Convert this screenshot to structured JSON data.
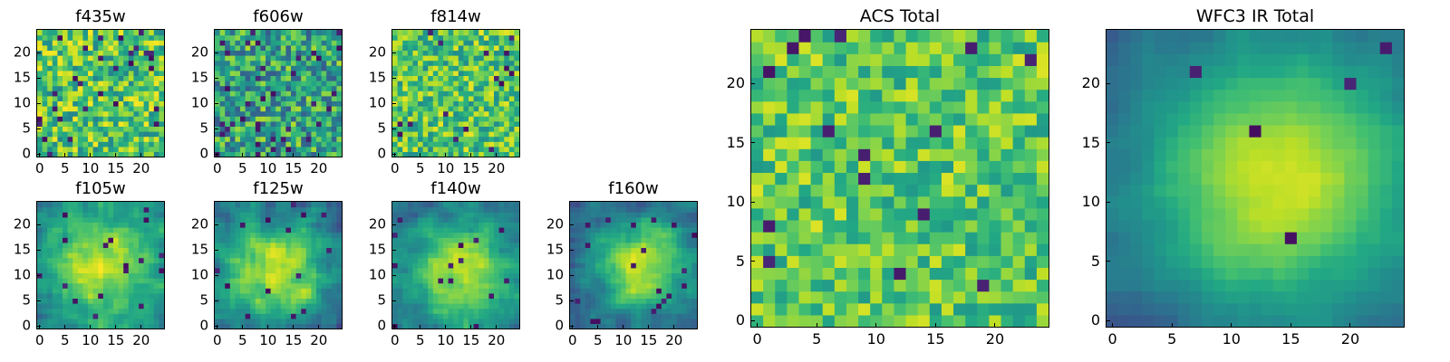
{
  "chart_data": [
    {
      "type": "heatmap",
      "title": "f435w",
      "size": "small",
      "grid_size": 25,
      "colormap": "viridis",
      "xlim": [
        0,
        24
      ],
      "ylim": [
        0,
        24
      ],
      "xticks": [
        0,
        5,
        10,
        15,
        20
      ],
      "yticks": [
        0,
        5,
        10,
        15,
        20
      ],
      "pattern": "noise",
      "noise_seed": 11,
      "noise_amplitude": 0.55,
      "base_level": 0.72,
      "dark_pixel_fraction": 0.05
    },
    {
      "type": "heatmap",
      "title": "f606w",
      "size": "small",
      "grid_size": 25,
      "colormap": "viridis",
      "xlim": [
        0,
        24
      ],
      "ylim": [
        0,
        24
      ],
      "xticks": [
        0,
        5,
        10,
        15,
        20
      ],
      "yticks": [
        0,
        5,
        10,
        15,
        20
      ],
      "pattern": "noise",
      "noise_seed": 23,
      "noise_amplitude": 0.6,
      "base_level": 0.58,
      "dark_pixel_fraction": 0.05
    },
    {
      "type": "heatmap",
      "title": "f814w",
      "size": "small",
      "grid_size": 25,
      "colormap": "viridis",
      "xlim": [
        0,
        24
      ],
      "ylim": [
        0,
        24
      ],
      "xticks": [
        0,
        5,
        10,
        15,
        20
      ],
      "yticks": [
        0,
        5,
        10,
        15,
        20
      ],
      "pattern": "noise",
      "noise_seed": 37,
      "noise_amplitude": 0.5,
      "base_level": 0.72,
      "dark_pixel_fraction": 0.03
    },
    {
      "type": "heatmap",
      "title": "f105w",
      "size": "small",
      "grid_size": 25,
      "colormap": "viridis",
      "xlim": [
        0,
        24
      ],
      "ylim": [
        0,
        24
      ],
      "xticks": [
        0,
        5,
        10,
        15,
        20
      ],
      "yticks": [
        0,
        5,
        10,
        15,
        20
      ],
      "pattern": "blob",
      "blob_center": [
        12,
        12
      ],
      "blob_sigma": 7.5,
      "blob_amplitude": 0.5,
      "base_level": 0.42,
      "noise_seed": 41,
      "noise_amplitude": 0.28,
      "dark_pixel_fraction": 0.02
    },
    {
      "type": "heatmap",
      "title": "f125w",
      "size": "small",
      "grid_size": 25,
      "colormap": "viridis",
      "xlim": [
        0,
        24
      ],
      "ylim": [
        0,
        24
      ],
      "xticks": [
        0,
        5,
        10,
        15,
        20
      ],
      "yticks": [
        0,
        5,
        10,
        15,
        20
      ],
      "pattern": "blob",
      "blob_center": [
        12,
        11
      ],
      "blob_sigma": 7,
      "blob_amplitude": 0.52,
      "base_level": 0.38,
      "noise_seed": 53,
      "noise_amplitude": 0.3,
      "dark_pixel_fraction": 0.03
    },
    {
      "type": "heatmap",
      "title": "f140w",
      "size": "small",
      "grid_size": 25,
      "colormap": "viridis",
      "xlim": [
        0,
        24
      ],
      "ylim": [
        0,
        24
      ],
      "xticks": [
        0,
        5,
        10,
        15,
        20
      ],
      "yticks": [
        0,
        5,
        10,
        15,
        20
      ],
      "pattern": "blob",
      "blob_center": [
        13,
        11
      ],
      "blob_sigma": 7,
      "blob_amplitude": 0.55,
      "base_level": 0.36,
      "noise_seed": 61,
      "noise_amplitude": 0.26,
      "dark_pixel_fraction": 0.02
    },
    {
      "type": "heatmap",
      "title": "f160w",
      "size": "small",
      "grid_size": 25,
      "colormap": "viridis",
      "xlim": [
        0,
        24
      ],
      "ylim": [
        0,
        24
      ],
      "xticks": [
        0,
        5,
        10,
        15,
        20
      ],
      "yticks": [
        0,
        5,
        10,
        15,
        20
      ],
      "pattern": "blob",
      "blob_center": [
        14,
        12
      ],
      "blob_sigma": 6.5,
      "blob_amplitude": 0.62,
      "base_level": 0.3,
      "noise_seed": 71,
      "noise_amplitude": 0.26,
      "dark_pixel_fraction": 0.03
    },
    {
      "type": "heatmap",
      "title": "ACS Total",
      "size": "large",
      "grid_size": 25,
      "colormap": "viridis",
      "xlim": [
        0,
        24
      ],
      "ylim": [
        0,
        24
      ],
      "xticks": [
        0,
        5,
        10,
        15,
        20
      ],
      "yticks": [
        0,
        5,
        10,
        15,
        20
      ],
      "pattern": "noise",
      "noise_seed": 83,
      "noise_amplitude": 0.42,
      "base_level": 0.74,
      "dark_pixel_fraction": 0.03
    },
    {
      "type": "heatmap",
      "title": "WFC3 IR Total",
      "size": "large",
      "grid_size": 25,
      "colormap": "viridis",
      "xlim": [
        0,
        24
      ],
      "ylim": [
        0,
        24
      ],
      "xticks": [
        0,
        5,
        10,
        15,
        20
      ],
      "yticks": [
        0,
        5,
        10,
        15,
        20
      ],
      "pattern": "blob",
      "blob_center": [
        14,
        12
      ],
      "blob_sigma": 8,
      "blob_amplitude": 0.62,
      "base_level": 0.3,
      "noise_seed": 97,
      "noise_amplitude": 0.1,
      "dark_pixel_fraction": 0.01
    }
  ]
}
